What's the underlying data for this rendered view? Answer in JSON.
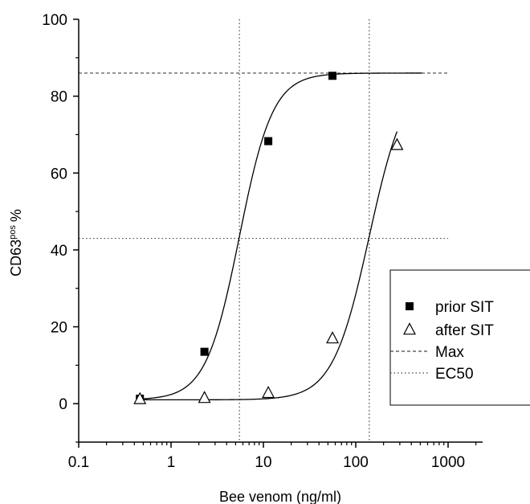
{
  "chart_data": {
    "type": "scatter",
    "xlabel": "Bee venom (ng/ml)",
    "ylabel_main": "CD63",
    "ylabel_sup": "pos",
    "ylabel_unit": "%",
    "xscale": "log",
    "xlim": [
      0.1,
      2500
    ],
    "ylim": [
      -10,
      100
    ],
    "x_ticks": [
      0.1,
      1,
      10,
      100,
      1000
    ],
    "x_tick_labels": [
      "0.1",
      "1",
      "10",
      "100",
      "1000"
    ],
    "y_ticks": [
      0,
      20,
      40,
      60,
      80,
      100
    ],
    "y_tick_labels": [
      "0",
      "20",
      "40",
      "60",
      "80",
      "100"
    ],
    "grid": false,
    "legend_position": "right",
    "series": [
      {
        "name": "prior SIT",
        "marker": "filled-square",
        "x": [
          0.46,
          2.3,
          11.3,
          56
        ],
        "y": [
          1.3,
          13.5,
          68.3,
          85.3
        ],
        "fit": {
          "bottom": 1,
          "top": 86,
          "ec50": 5.5,
          "hill": 2.4,
          "x_range": [
            0.46,
            520
          ]
        }
      },
      {
        "name": "after SIT",
        "marker": "open-triangle",
        "x": [
          0.46,
          2.3,
          11.3,
          56,
          280
        ],
        "y": [
          1.2,
          1.5,
          2.8,
          17,
          67.3
        ],
        "fit": {
          "bottom": 1,
          "top": 86,
          "ec50": 140,
          "hill": 2.2,
          "x_range": [
            0.46,
            280
          ]
        }
      }
    ],
    "reference_lines": [
      {
        "name": "Max",
        "style": "dashed",
        "orientation": "horizontal",
        "y": 86
      },
      {
        "name": "EC50",
        "style": "dotted",
        "orientation": "horizontal",
        "y": 43
      },
      {
        "name": "EC50",
        "style": "dotted",
        "orientation": "vertical",
        "x": 5.5
      },
      {
        "name": "EC50",
        "style": "dotted",
        "orientation": "vertical",
        "x": 140
      }
    ],
    "legend": [
      {
        "label": "prior SIT",
        "symbol": "filled-square"
      },
      {
        "label": "after SIT",
        "symbol": "open-triangle"
      },
      {
        "label": "Max",
        "symbol": "dashed-line"
      },
      {
        "label": "EC50",
        "symbol": "dotted-line"
      }
    ]
  }
}
